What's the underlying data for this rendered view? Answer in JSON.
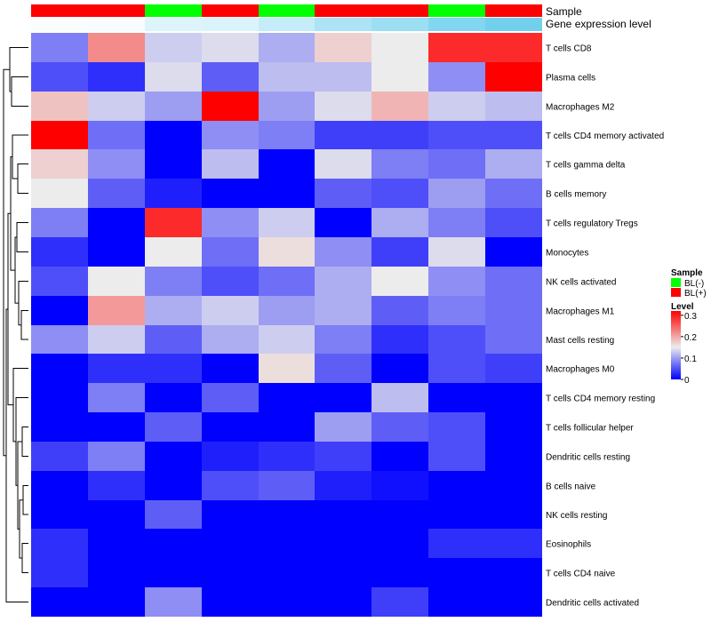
{
  "chart_data": {
    "type": "heatmap",
    "annotation_tracks": [
      {
        "name": "Sample",
        "values": [
          "BL(+)",
          "BL(+)",
          "BL(-)",
          "BL(+)",
          "BL(-)",
          "BL(+)",
          "BL(+)",
          "BL(-)",
          "BL(+)"
        ]
      },
      {
        "name": "Gene expression level",
        "values": [
          0.03,
          0.05,
          0.2,
          0.22,
          0.35,
          0.5,
          0.6,
          0.75,
          0.85
        ]
      }
    ],
    "rows": [
      "T cells CD8",
      "Plasma cells",
      "Macrophages M2",
      "T cells CD4 memory activated",
      "T cells gamma delta",
      "B cells memory",
      "T cells regulatory  Tregs",
      "Monocytes",
      "NK cells activated",
      "Macrophages M1",
      "Mast cells resting",
      "Macrophages M0",
      "T cells CD4 memory resting",
      "T cells follicular helper",
      "Dendritic cells resting",
      "B cells naive",
      "NK cells resting",
      "Eosinophils",
      "T cells CD4 naive",
      "Dendritic cells activated"
    ],
    "values": [
      [
        0.08,
        0.22,
        0.13,
        0.14,
        0.11,
        0.17,
        0.15,
        0.29,
        0.29
      ],
      [
        0.05,
        0.03,
        0.14,
        0.06,
        0.12,
        0.12,
        0.15,
        0.09,
        0.32
      ],
      [
        0.18,
        0.13,
        0.1,
        0.32,
        0.1,
        0.14,
        0.19,
        0.13,
        0.12
      ],
      [
        0.32,
        0.07,
        0.0,
        0.09,
        0.08,
        0.04,
        0.04,
        0.05,
        0.05
      ],
      [
        0.17,
        0.09,
        0.0,
        0.12,
        0.0,
        0.14,
        0.08,
        0.07,
        0.11
      ],
      [
        0.15,
        0.06,
        0.02,
        0.0,
        0.0,
        0.06,
        0.05,
        0.1,
        0.07
      ],
      [
        0.08,
        0.0,
        0.29,
        0.09,
        0.13,
        0.0,
        0.11,
        0.08,
        0.05
      ],
      [
        0.03,
        0.0,
        0.15,
        0.07,
        0.16,
        0.09,
        0.04,
        0.14,
        0.0
      ],
      [
        0.05,
        0.15,
        0.08,
        0.05,
        0.07,
        0.11,
        0.15,
        0.09,
        0.07
      ],
      [
        0.0,
        0.21,
        0.11,
        0.13,
        0.1,
        0.11,
        0.06,
        0.08,
        0.07
      ],
      [
        0.09,
        0.13,
        0.06,
        0.11,
        0.13,
        0.08,
        0.03,
        0.05,
        0.07
      ],
      [
        0.0,
        0.03,
        0.03,
        0.0,
        0.16,
        0.06,
        0.0,
        0.05,
        0.04
      ],
      [
        0.0,
        0.08,
        0.0,
        0.06,
        0.0,
        0.0,
        0.12,
        0.0,
        0.0
      ],
      [
        0.0,
        0.0,
        0.06,
        0.0,
        0.0,
        0.1,
        0.06,
        0.05,
        0.0
      ],
      [
        0.04,
        0.08,
        0.0,
        0.02,
        0.03,
        0.04,
        0.0,
        0.05,
        0.0
      ],
      [
        0.0,
        0.03,
        0.0,
        0.05,
        0.06,
        0.02,
        0.01,
        0.0,
        0.0
      ],
      [
        0.0,
        0.0,
        0.06,
        0.0,
        0.0,
        0.0,
        0.0,
        0.0,
        0.0
      ],
      [
        0.03,
        0.0,
        0.0,
        0.0,
        0.0,
        0.0,
        0.0,
        0.03,
        0.03
      ],
      [
        0.03,
        0.0,
        0.0,
        0.0,
        0.0,
        0.0,
        0.0,
        0.0,
        0.0
      ],
      [
        0.0,
        0.0,
        0.09,
        0.0,
        0.0,
        0.0,
        0.04,
        0.0,
        0.0
      ]
    ],
    "color_scale": {
      "stops": [
        {
          "value": 0.0,
          "color": "#0000ff"
        },
        {
          "value": 0.15,
          "color": "#ececec"
        },
        {
          "value": 0.32,
          "color": "#ff0000"
        }
      ]
    },
    "gene_track_colors": [
      "#ffffff",
      "#5ac8ea"
    ],
    "row_dendrogram": true,
    "legend_placement": "right",
    "legends": {
      "sample": {
        "title": "Sample",
        "items": [
          {
            "label": "BL(-)",
            "color": "#00ff00"
          },
          {
            "label": "BL(+)",
            "color": "#ff0000"
          }
        ]
      },
      "level": {
        "title": "Level",
        "ticks": [
          {
            "value": 0.3,
            "label": "0.3"
          },
          {
            "value": 0.2,
            "label": "0.2"
          },
          {
            "value": 0.1,
            "label": "0.1"
          },
          {
            "value": 0.0,
            "label": "0"
          }
        ],
        "range": [
          0,
          0.32
        ]
      }
    }
  }
}
